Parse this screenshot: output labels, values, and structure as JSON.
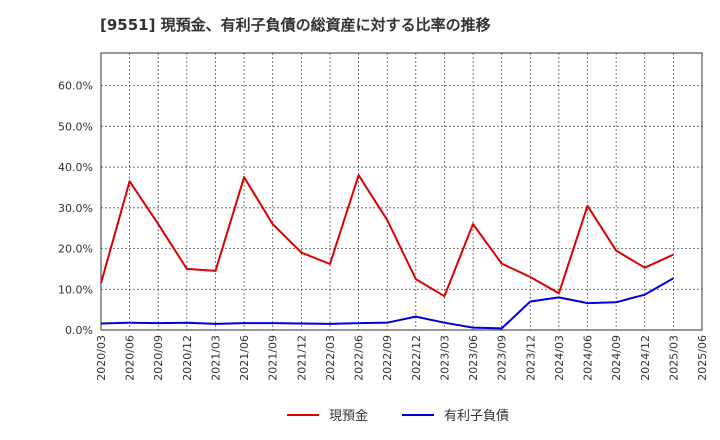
{
  "chart_data": {
    "type": "line",
    "title": "[9551]  現預金、有利子負債の総資産に対する比率の推移",
    "xlabel": "",
    "ylabel": "",
    "ylim": [
      0,
      68
    ],
    "yticks": [
      "0.0%",
      "10.0%",
      "20.0%",
      "30.0%",
      "40.0%",
      "50.0%",
      "60.0%"
    ],
    "ytick_values": [
      0,
      10,
      20,
      30,
      40,
      50,
      60
    ],
    "categories": [
      "2020/03",
      "2020/06",
      "2020/09",
      "2020/12",
      "2021/03",
      "2021/06",
      "2021/09",
      "2021/12",
      "2022/03",
      "2022/06",
      "2022/09",
      "2022/12",
      "2023/03",
      "2023/06",
      "2023/09",
      "2023/12",
      "2024/03",
      "2024/06",
      "2024/09",
      "2024/12",
      "2025/03",
      "2025/06"
    ],
    "series": [
      {
        "name": "現預金",
        "color": "#dd0000",
        "values": [
          11.5,
          36.5,
          26.0,
          15.0,
          14.5,
          37.5,
          26.0,
          19.0,
          16.2,
          38.0,
          27.0,
          12.5,
          8.3,
          26.0,
          16.3,
          13.0,
          9.0,
          30.5,
          19.5,
          15.3,
          18.5,
          null
        ]
      },
      {
        "name": "有利子負債",
        "color": "#0000dd",
        "values": [
          1.6,
          1.8,
          1.7,
          1.8,
          1.5,
          1.7,
          1.7,
          1.6,
          1.5,
          1.7,
          1.8,
          3.3,
          1.8,
          0.6,
          0.4,
          7.0,
          8.0,
          6.6,
          6.8,
          8.7,
          12.7,
          null
        ]
      }
    ],
    "legend_position": "bottom",
    "grid": true
  }
}
